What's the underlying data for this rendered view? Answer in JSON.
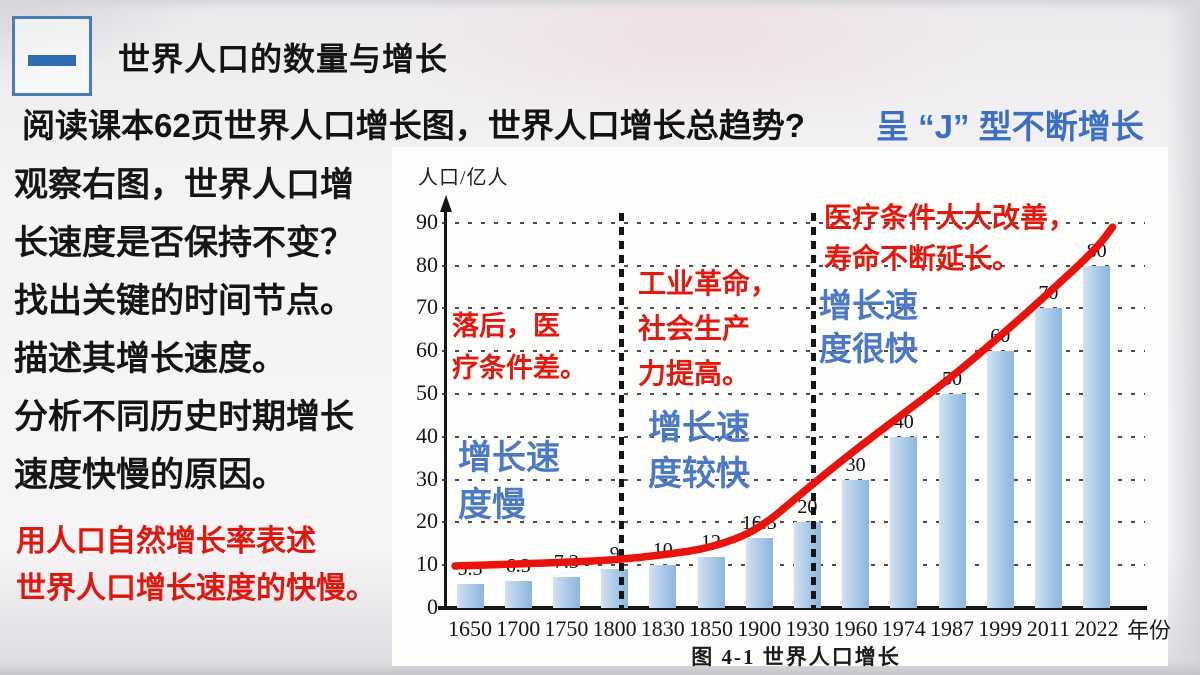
{
  "header": {
    "index_symbol": "一",
    "title": "世界人口的数量与增长"
  },
  "question": {
    "text": "阅读课本62页世界人口增长图，世界人口增长总趋势?",
    "answer": "呈 “J” 型不断增长"
  },
  "left_panel": {
    "observe_text": "观察右图，世界人口增\n长速度是否保持不变？\n找出关键的时间节点。\n描述其增长速度。\n分析不同历史时期增长\n速度快慢的原因。",
    "note_text": "用人口自然增长率表述\n世界人口增长速度的快慢。"
  },
  "chart_data": {
    "type": "bar",
    "title": "图 4-1  世界人口增长",
    "ylabel": "人口/亿人",
    "xlabel": "年份",
    "categories": [
      "1650",
      "1700",
      "1750",
      "1800",
      "1830",
      "1850",
      "1900",
      "1930",
      "1960",
      "1974",
      "1987",
      "1999",
      "2011",
      "2022"
    ],
    "values": [
      5.5,
      6.3,
      7.3,
      9,
      10,
      12,
      16.3,
      20,
      30,
      40,
      50,
      60,
      70,
      80
    ],
    "bar_labels": [
      "5.5",
      "6.3",
      "7.3",
      "9",
      "10",
      "12",
      "16.3",
      "20",
      "30",
      "40",
      "50",
      "60",
      "70",
      "80"
    ],
    "ylim": [
      0,
      90
    ],
    "ytick_step": 10,
    "grid": true,
    "dividers": [
      "1800",
      "1930"
    ],
    "curve": {
      "name": "世界人口增长曲线",
      "start_value": 9.8,
      "values": [
        9.9,
        10.3,
        10.7,
        11.2,
        12.4,
        14,
        18.3,
        28,
        37,
        45.5,
        54,
        63.5,
        73.5,
        84
      ],
      "end_value": 89
    },
    "annotations": {
      "red": [
        {
          "text": "落后，医\n疗条件差。"
        },
        {
          "text": "工业革命，\n社会生产\n力提高。"
        },
        {
          "text": "医疗条件大大改善，\n寿命不断延长。"
        }
      ],
      "blue": [
        {
          "text": "增长速\n度慢"
        },
        {
          "text": "增长速\n度较快"
        },
        {
          "text": "增长速\n度很快"
        }
      ]
    },
    "colors": {
      "bar_light": "#d2e2f2",
      "bar_dark": "#8cb6de",
      "curve": "#e8130c",
      "annotation_red": "#e2190e",
      "annotation_blue": "#4b79c6",
      "answer_blue": "#3a6fc4",
      "note_red": "#e0170d"
    }
  }
}
